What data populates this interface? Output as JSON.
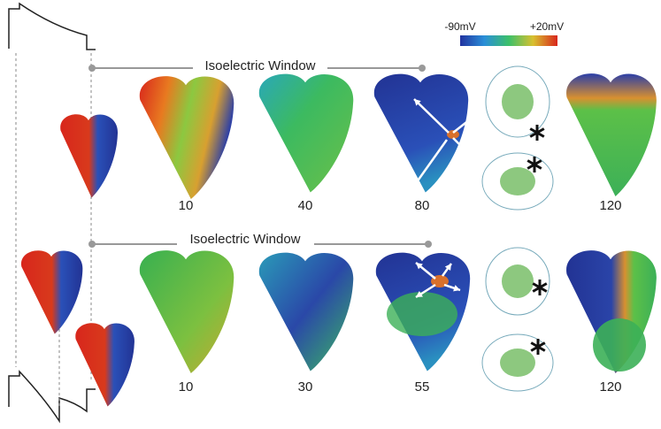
{
  "colorbar": {
    "min_label": "-90mV",
    "max_label": "+20mV"
  },
  "rows": [
    {
      "window_label": "Isoelectric Window",
      "times": [
        10,
        40,
        80,
        120
      ]
    },
    {
      "window_label": "Isoelectric Window",
      "times": [
        10,
        30,
        55,
        120
      ]
    }
  ]
}
